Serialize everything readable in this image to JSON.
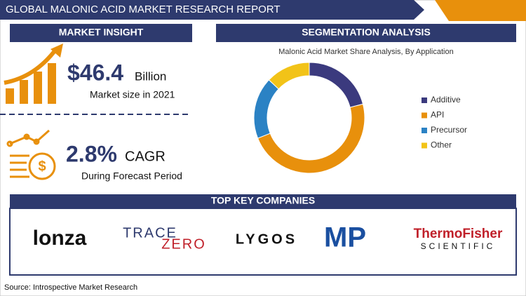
{
  "header": {
    "title": "GLOBAL MALONIC ACID MARKET RESEARCH REPORT"
  },
  "insight": {
    "heading": "MARKET INSIGHT",
    "size_value": "$46.4",
    "size_unit": "Billion",
    "size_note": "Market size in 2021",
    "cagr_value": "2.8%",
    "cagr_unit": "CAGR",
    "cagr_note": "During Forecast Period"
  },
  "segmentation": {
    "heading": "SEGMENTATION ANALYSIS"
  },
  "chart_data": {
    "type": "donut",
    "title": "Malonic Acid Market Share Analysis, By Application",
    "categories": [
      "Additive",
      "API",
      "Precursor",
      "Other"
    ],
    "values": [
      21,
      48,
      18,
      13
    ],
    "colors": [
      "#3b3a7e",
      "#e8900c",
      "#2b82c4",
      "#f2c318"
    ]
  },
  "companies": {
    "heading": "TOP KEY COMPANIES",
    "names": [
      "lonza",
      "TRACE",
      "ZERO",
      "LYGOS",
      "MP",
      "ThermoFisher",
      "SCIENTIFIC"
    ]
  },
  "source": "Source: Introspective Market Research"
}
